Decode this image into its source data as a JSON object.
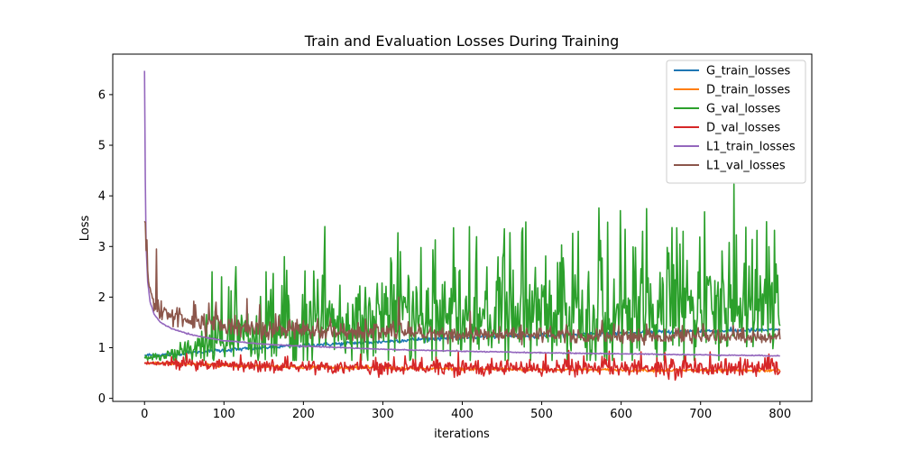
{
  "chart_data": {
    "type": "line",
    "title": "Train and Evaluation Losses During Training",
    "xlabel": "iterations",
    "ylabel": "Loss",
    "xlim": [
      -40,
      840
    ],
    "ylim": [
      -0.06,
      6.8
    ],
    "xticks": [
      0,
      100,
      200,
      300,
      400,
      500,
      600,
      700,
      800
    ],
    "yticks": [
      0,
      1,
      2,
      3,
      4,
      5,
      6
    ],
    "grid": false,
    "legend_position": "top-right",
    "series": [
      {
        "name": "G_train_losses",
        "color": "#1f77b4",
        "kind": "smooth",
        "points": [
          [
            0,
            0.85
          ],
          [
            25,
            0.86
          ],
          [
            50,
            0.89
          ],
          [
            100,
            0.95
          ],
          [
            150,
            1.0
          ],
          [
            200,
            1.05
          ],
          [
            250,
            1.08
          ],
          [
            300,
            1.12
          ],
          [
            350,
            1.17
          ],
          [
            400,
            1.2
          ],
          [
            450,
            1.23
          ],
          [
            500,
            1.25
          ],
          [
            550,
            1.27
          ],
          [
            600,
            1.29
          ],
          [
            650,
            1.31
          ],
          [
            700,
            1.33
          ],
          [
            750,
            1.34
          ],
          [
            800,
            1.35
          ]
        ],
        "noise": 0.02
      },
      {
        "name": "D_train_losses",
        "color": "#ff7f0e",
        "kind": "smooth",
        "points": [
          [
            0,
            0.7
          ],
          [
            50,
            0.68
          ],
          [
            100,
            0.65
          ],
          [
            200,
            0.62
          ],
          [
            300,
            0.6
          ],
          [
            400,
            0.58
          ],
          [
            500,
            0.57
          ],
          [
            600,
            0.56
          ],
          [
            700,
            0.55
          ],
          [
            800,
            0.55
          ]
        ],
        "noise": 0.015
      },
      {
        "name": "G_val_losses",
        "color": "#2ca02c",
        "kind": "noisy",
        "base": [
          [
            0,
            0.8
          ],
          [
            40,
            0.85
          ],
          [
            80,
            1.05
          ],
          [
            150,
            1.2
          ],
          [
            250,
            1.35
          ],
          [
            350,
            1.45
          ],
          [
            450,
            1.55
          ],
          [
            550,
            1.6
          ],
          [
            650,
            1.65
          ],
          [
            750,
            1.7
          ],
          [
            800,
            1.7
          ]
        ],
        "amp": [
          [
            0,
            0.05
          ],
          [
            40,
            0.15
          ],
          [
            80,
            0.5
          ],
          [
            200,
            0.7
          ],
          [
            400,
            0.8
          ],
          [
            600,
            0.85
          ],
          [
            800,
            0.85
          ]
        ],
        "spikes": [
          [
            85,
            2.5
          ],
          [
            97,
            2.4
          ],
          [
            115,
            2.6
          ],
          [
            153,
            2.5
          ],
          [
            176,
            2.8
          ],
          [
            226,
            2.65
          ],
          [
            322,
            2.9
          ],
          [
            348,
            2.98
          ],
          [
            366,
            3.13
          ],
          [
            389,
            3.37
          ],
          [
            453,
            3.35
          ],
          [
            475,
            3.28
          ],
          [
            539,
            3.26
          ],
          [
            546,
            3.3
          ],
          [
            574,
            3.12
          ],
          [
            583,
            3.48
          ],
          [
            605,
            3.34
          ],
          [
            627,
            3.3
          ],
          [
            670,
            3.37
          ],
          [
            678,
            3.3
          ],
          [
            742,
            4.23
          ],
          [
            757,
            3.38
          ],
          [
            765,
            3.14
          ],
          [
            783,
            3.49
          ]
        ],
        "clip": [
          0.75,
          4.3
        ]
      },
      {
        "name": "D_val_losses",
        "color": "#d62728",
        "kind": "noisy",
        "base": [
          [
            0,
            0.69
          ],
          [
            100,
            0.63
          ],
          [
            300,
            0.59
          ],
          [
            500,
            0.59
          ],
          [
            800,
            0.58
          ]
        ],
        "amp": [
          [
            0,
            0.03
          ],
          [
            50,
            0.08
          ],
          [
            300,
            0.12
          ],
          [
            800,
            0.14
          ]
        ],
        "spikes": [
          [
            395,
            0.92
          ],
          [
            505,
            0.9
          ],
          [
            585,
            0.93
          ],
          [
            625,
            0.92
          ],
          [
            655,
            0.9
          ]
        ],
        "clip": [
          0.28,
          0.95
        ]
      },
      {
        "name": "L1_train_losses",
        "color": "#9467bd",
        "kind": "smooth",
        "points": [
          [
            0,
            6.47
          ],
          [
            1,
            4.3
          ],
          [
            2,
            3.0
          ],
          [
            4,
            2.3
          ],
          [
            7,
            1.9
          ],
          [
            12,
            1.67
          ],
          [
            20,
            1.5
          ],
          [
            35,
            1.37
          ],
          [
            60,
            1.25
          ],
          [
            100,
            1.14
          ],
          [
            150,
            1.07
          ],
          [
            200,
            1.03
          ],
          [
            300,
            0.97
          ],
          [
            400,
            0.93
          ],
          [
            500,
            0.9
          ],
          [
            600,
            0.88
          ],
          [
            700,
            0.86
          ],
          [
            800,
            0.84
          ]
        ],
        "noise": 0.005
      },
      {
        "name": "L1_val_losses",
        "color": "#8c564b",
        "kind": "noisy",
        "base": [
          [
            0,
            3.45
          ],
          [
            3,
            2.7
          ],
          [
            6,
            2.2
          ],
          [
            10,
            1.9
          ],
          [
            20,
            1.7
          ],
          [
            40,
            1.6
          ],
          [
            80,
            1.45
          ],
          [
            150,
            1.35
          ],
          [
            250,
            1.3
          ],
          [
            400,
            1.25
          ],
          [
            600,
            1.22
          ],
          [
            800,
            1.2
          ]
        ],
        "amp": [
          [
            0,
            0.1
          ],
          [
            20,
            0.15
          ],
          [
            100,
            0.18
          ],
          [
            400,
            0.12
          ],
          [
            800,
            0.1
          ]
        ],
        "spikes": [
          [
            1,
            3.47
          ],
          [
            3,
            3.13
          ],
          [
            15,
            2.95
          ],
          [
            64,
            1.85
          ],
          [
            90,
            1.9
          ],
          [
            145,
            1.85
          ],
          [
            320,
            2.0
          ],
          [
            410,
            1.72
          ]
        ],
        "clip": [
          0.95,
          3.5
        ]
      }
    ]
  }
}
